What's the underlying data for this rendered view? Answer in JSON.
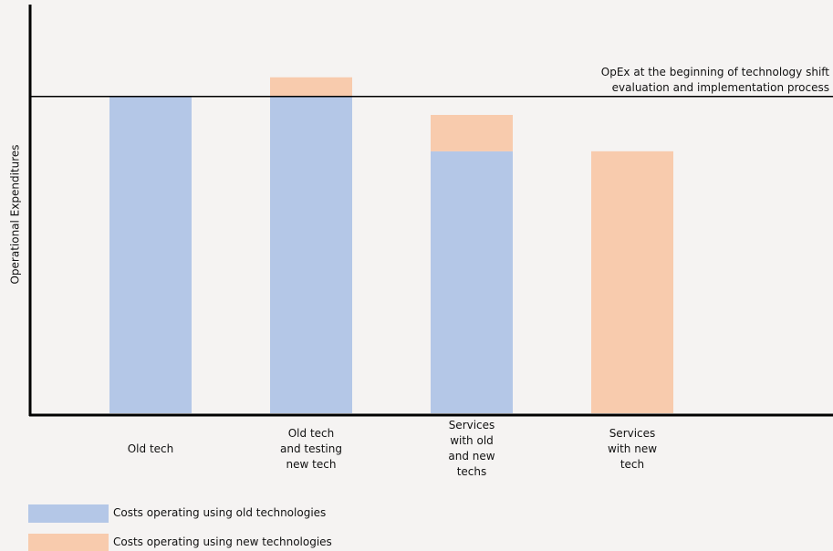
{
  "chart_data": {
    "type": "stacked_bar",
    "y_label": "Operational Expenditures",
    "categories": [
      "Old tech",
      "Old tech\nand testing\nnew tech",
      "Services\nwith old\nand new\ntechs",
      "Services\nwith new\ntech"
    ],
    "series": [
      {
        "name": "Costs operating using old technologies",
        "color": "#b4c7e7",
        "values": [
          77.5,
          77.5,
          64.1,
          0
        ]
      },
      {
        "name": "Costs operating using new technologies",
        "color": "#f8cbad",
        "values": [
          0,
          4.7,
          8.9,
          64.1
        ]
      }
    ],
    "ylim": [
      0,
      100
    ],
    "reference_line": {
      "value": 77.5,
      "label": "OpEx at the beginning of technology shift\nevaluation and implementation process"
    }
  }
}
